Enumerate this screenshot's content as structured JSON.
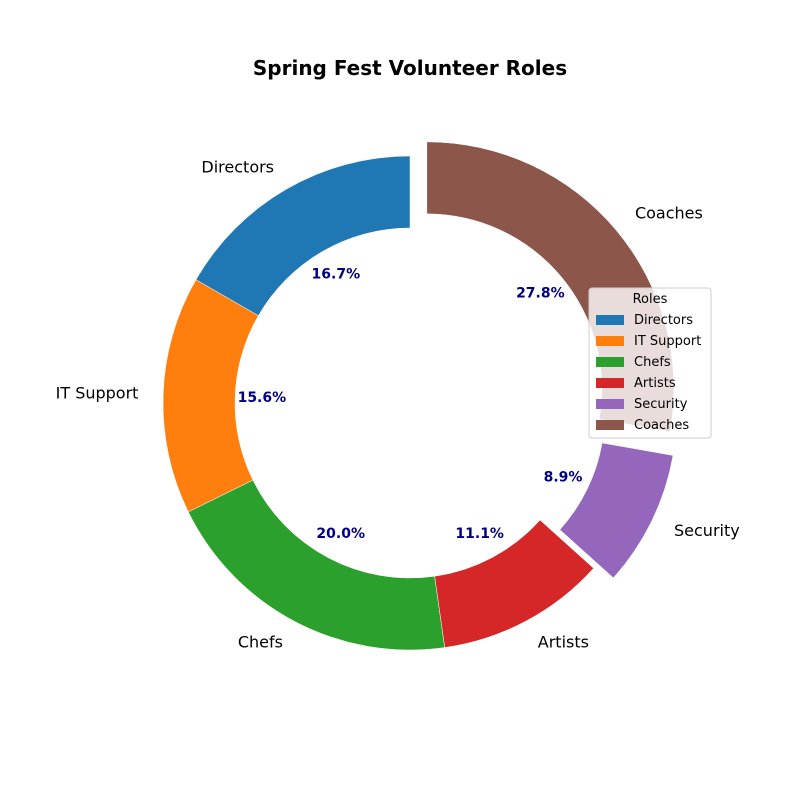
{
  "chart_data": {
    "type": "pie",
    "donut": true,
    "title": "Spring Fest Volunteer Roles",
    "start_angle_deg": 90,
    "direction": "counterclockwise",
    "categories": [
      "Directors",
      "IT Support",
      "Chefs",
      "Artists",
      "Security",
      "Coaches"
    ],
    "values": [
      16.7,
      15.6,
      20.0,
      11.1,
      8.9,
      27.8
    ],
    "percent_labels": [
      "16.7%",
      "15.6%",
      "20.0%",
      "11.1%",
      "8.9%",
      "27.8%"
    ],
    "exploded": [
      false,
      false,
      false,
      false,
      true,
      true
    ],
    "colors": [
      "#1f77b4",
      "#ff7f0e",
      "#2ca02c",
      "#d62728",
      "#9467bd",
      "#8c564b"
    ],
    "percent_label_color": "#000080",
    "legend": {
      "title": "Roles",
      "placement": "center-right",
      "entries": [
        "Directors",
        "IT Support",
        "Chefs",
        "Artists",
        "Security",
        "Coaches"
      ]
    }
  }
}
